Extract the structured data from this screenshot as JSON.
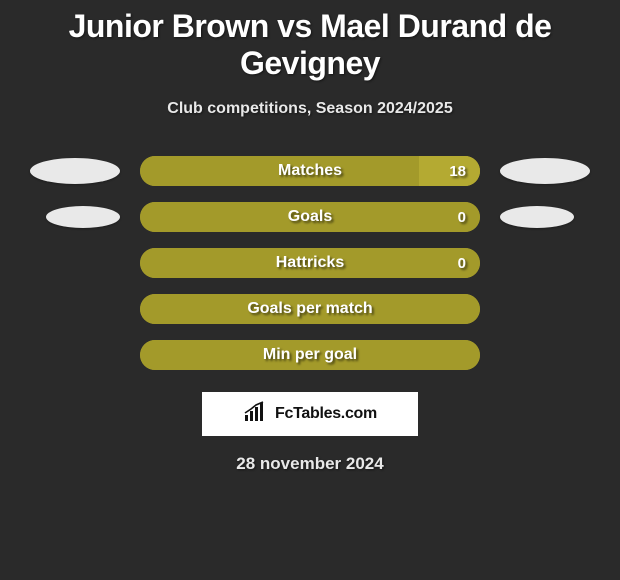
{
  "background_color": "#2a2a2a",
  "title": {
    "text": "Junior Brown vs Mael Durand de Gevigney",
    "color": "#ffffff",
    "fontsize": 32,
    "fontweight": 900
  },
  "subtitle": {
    "text": "Club competitions, Season 2024/2025",
    "color": "#e8e8e8",
    "fontsize": 16,
    "fontweight": 700
  },
  "bar_track_color": "#a39a2a",
  "bar_fill_color": "#a39a2a",
  "bar_highlight_color": "#b4aa32",
  "bar_border_radius": 15,
  "ellipse_color": "#e9e9e9",
  "rows": [
    {
      "label": "Matches",
      "value": "18",
      "left_ellipse": "wide",
      "right_ellipse": "wide",
      "fill_pct": 100,
      "highlight_right_pct": 18
    },
    {
      "label": "Goals",
      "value": "0",
      "left_ellipse": "narrow",
      "right_ellipse": "narrow",
      "fill_pct": 100,
      "highlight_right_pct": 0
    },
    {
      "label": "Hattricks",
      "value": "0",
      "left_ellipse": "none",
      "right_ellipse": "none",
      "fill_pct": 100,
      "highlight_right_pct": 0
    },
    {
      "label": "Goals per match",
      "value": "",
      "left_ellipse": "none",
      "right_ellipse": "none",
      "fill_pct": 100,
      "highlight_right_pct": 0
    },
    {
      "label": "Min per goal",
      "value": "",
      "left_ellipse": "none",
      "right_ellipse": "none",
      "fill_pct": 100,
      "highlight_right_pct": 0
    }
  ],
  "logo": {
    "text": "FcTables.com",
    "box_bg": "#ffffff",
    "text_color": "#111111",
    "icon_color": "#111111"
  },
  "date": {
    "text": "28 november 2024",
    "color": "#e8e8e8",
    "fontsize": 17
  }
}
